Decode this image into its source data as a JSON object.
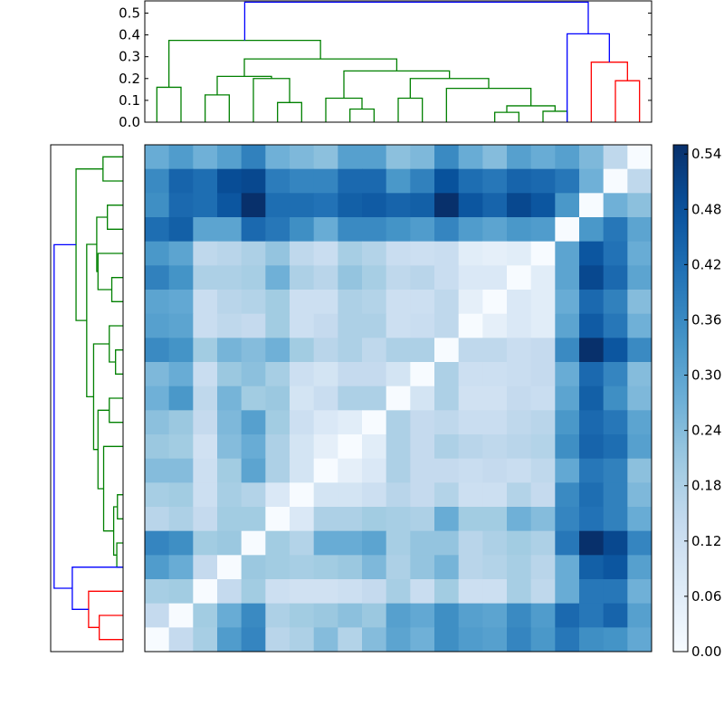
{
  "chart_data": {
    "type": "heatmap",
    "title": "",
    "description": "Clustered distance matrix heatmap with top and left dendrograms",
    "n": 21,
    "colormap": "Blues",
    "vmin": 0.0,
    "vmax": 0.55,
    "colorbar": {
      "ticks": [
        "0.00",
        "0.06",
        "0.12",
        "0.18",
        "0.24",
        "0.30",
        "0.36",
        "0.42",
        "0.48",
        "0.54"
      ],
      "tick_values": [
        0.0,
        0.06,
        0.12,
        0.18,
        0.24,
        0.3,
        0.36,
        0.42,
        0.48,
        0.54
      ]
    },
    "top_dendrogram": {
      "ylim": [
        0.0,
        0.56
      ],
      "yticks": [
        "0.0",
        "0.1",
        "0.2",
        "0.3",
        "0.4",
        "0.5"
      ],
      "tick_values": [
        0.0,
        0.1,
        0.2,
        0.3,
        0.4,
        0.5
      ],
      "colors": {
        "cluster_a": "#008000",
        "cluster_b": "#ff0000",
        "root": "#0000ff"
      },
      "segments": [
        {
          "c": "g",
          "x": [
            0.5,
            1.5
          ],
          "h0": [
            0,
            0
          ],
          "h": 0.16
        },
        {
          "c": "g",
          "x": [
            2.5,
            3.5
          ],
          "h0": [
            0,
            0
          ],
          "h": 0.125
        },
        {
          "c": "g",
          "x": [
            5.5,
            6.5
          ],
          "h0": [
            0,
            0
          ],
          "h": 0.09
        },
        {
          "c": "g",
          "x": [
            4.5,
            6.0
          ],
          "h0": [
            0,
            0.09
          ],
          "h": 0.2
        },
        {
          "c": "g",
          "x": [
            3.0,
            5.25
          ],
          "h0": [
            0.125,
            0.2
          ],
          "h": 0.21
        },
        {
          "c": "g",
          "x": [
            8.5,
            9.5
          ],
          "h0": [
            0,
            0
          ],
          "h": 0.06
        },
        {
          "c": "g",
          "x": [
            7.5,
            9.0
          ],
          "h0": [
            0,
            0.06
          ],
          "h": 0.11
        },
        {
          "c": "g",
          "x": [
            10.5,
            11.5
          ],
          "h0": [
            0,
            0
          ],
          "h": 0.11
        },
        {
          "c": "g",
          "x": [
            14.5,
            15.5
          ],
          "h0": [
            0,
            0
          ],
          "h": 0.045
        },
        {
          "c": "g",
          "x": [
            16.5,
            17.5
          ],
          "h0": [
            0,
            0
          ],
          "h": 0.05
        },
        {
          "c": "g",
          "x": [
            15.0,
            17.0
          ],
          "h0": [
            0.045,
            0.05
          ],
          "h": 0.075
        },
        {
          "c": "g",
          "x": [
            12.5,
            16.0
          ],
          "h0": [
            0,
            0.075
          ],
          "h": 0.155
        },
        {
          "c": "g",
          "x": [
            11.0,
            14.25
          ],
          "h0": [
            0.11,
            0.155
          ],
          "h": 0.2
        },
        {
          "c": "g",
          "x": [
            8.25,
            12.625
          ],
          "h0": [
            0.11,
            0.2
          ],
          "h": 0.235
        },
        {
          "c": "g",
          "x": [
            4.125,
            10.44
          ],
          "h0": [
            0.21,
            0.235
          ],
          "h": 0.29
        },
        {
          "c": "g",
          "x": [
            1.0,
            7.28
          ],
          "h0": [
            0.16,
            0.29
          ],
          "h": 0.375
        },
        {
          "c": "r",
          "x": [
            19.5,
            20.5
          ],
          "h0": [
            0,
            0
          ],
          "h": 0.19
        },
        {
          "c": "r",
          "x": [
            18.5,
            20.0
          ],
          "h0": [
            0,
            0.19
          ],
          "h": 0.275
        },
        {
          "c": "b",
          "x": [
            17.5,
            19.25
          ],
          "h0": [
            0,
            0.275
          ],
          "h": 0.405
        },
        {
          "c": "b",
          "x": [
            4.14,
            18.375
          ],
          "h0": [
            0.375,
            0.405
          ],
          "h": 0.55
        }
      ]
    },
    "matrix": [
      [
        0.28,
        0.32,
        0.27,
        0.31,
        0.38,
        0.27,
        0.25,
        0.23,
        0.31,
        0.31,
        0.23,
        0.25,
        0.36,
        0.28,
        0.24,
        0.31,
        0.28,
        0.31,
        0.25,
        0.15,
        0.0
      ],
      [
        0.36,
        0.44,
        0.42,
        0.49,
        0.5,
        0.39,
        0.37,
        0.37,
        0.43,
        0.43,
        0.33,
        0.38,
        0.48,
        0.42,
        0.4,
        0.44,
        0.43,
        0.4,
        0.27,
        0.0,
        0.15
      ],
      [
        0.35,
        0.43,
        0.42,
        0.47,
        0.55,
        0.42,
        0.42,
        0.41,
        0.45,
        0.46,
        0.44,
        0.45,
        0.55,
        0.47,
        0.44,
        0.5,
        0.47,
        0.33,
        0.0,
        0.27,
        0.23
      ],
      [
        0.42,
        0.45,
        0.3,
        0.3,
        0.43,
        0.4,
        0.35,
        0.28,
        0.36,
        0.36,
        0.34,
        0.32,
        0.37,
        0.32,
        0.3,
        0.33,
        0.32,
        0.0,
        0.33,
        0.4,
        0.3
      ],
      [
        0.33,
        0.3,
        0.15,
        0.16,
        0.18,
        0.22,
        0.15,
        0.13,
        0.19,
        0.17,
        0.13,
        0.12,
        0.13,
        0.06,
        0.05,
        0.06,
        0.0,
        0.3,
        0.47,
        0.41,
        0.28
      ],
      [
        0.38,
        0.34,
        0.18,
        0.18,
        0.19,
        0.27,
        0.18,
        0.16,
        0.22,
        0.19,
        0.15,
        0.16,
        0.13,
        0.08,
        0.08,
        0.0,
        0.06,
        0.3,
        0.5,
        0.43,
        0.3
      ],
      [
        0.3,
        0.29,
        0.13,
        0.16,
        0.17,
        0.2,
        0.12,
        0.12,
        0.18,
        0.17,
        0.12,
        0.12,
        0.15,
        0.05,
        0.0,
        0.08,
        0.06,
        0.28,
        0.43,
        0.38,
        0.24
      ],
      [
        0.31,
        0.3,
        0.13,
        0.15,
        0.14,
        0.2,
        0.12,
        0.14,
        0.18,
        0.18,
        0.12,
        0.13,
        0.15,
        0.0,
        0.05,
        0.08,
        0.06,
        0.3,
        0.46,
        0.4,
        0.27
      ],
      [
        0.36,
        0.34,
        0.2,
        0.26,
        0.24,
        0.27,
        0.2,
        0.16,
        0.18,
        0.15,
        0.18,
        0.18,
        0.0,
        0.15,
        0.15,
        0.13,
        0.14,
        0.36,
        0.55,
        0.47,
        0.36
      ],
      [
        0.25,
        0.28,
        0.13,
        0.21,
        0.23,
        0.19,
        0.12,
        0.1,
        0.14,
        0.14,
        0.1,
        0.0,
        0.18,
        0.12,
        0.12,
        0.13,
        0.14,
        0.28,
        0.43,
        0.37,
        0.24
      ],
      [
        0.27,
        0.33,
        0.15,
        0.26,
        0.2,
        0.21,
        0.1,
        0.13,
        0.18,
        0.18,
        0.0,
        0.1,
        0.18,
        0.11,
        0.11,
        0.14,
        0.13,
        0.3,
        0.45,
        0.35,
        0.25
      ],
      [
        0.23,
        0.21,
        0.14,
        0.25,
        0.31,
        0.2,
        0.12,
        0.08,
        0.06,
        0.0,
        0.18,
        0.14,
        0.15,
        0.13,
        0.13,
        0.15,
        0.16,
        0.33,
        0.43,
        0.4,
        0.3
      ],
      [
        0.21,
        0.2,
        0.11,
        0.24,
        0.28,
        0.18,
        0.1,
        0.05,
        0.0,
        0.06,
        0.18,
        0.14,
        0.18,
        0.16,
        0.15,
        0.16,
        0.17,
        0.35,
        0.44,
        0.42,
        0.31
      ],
      [
        0.24,
        0.24,
        0.12,
        0.2,
        0.3,
        0.18,
        0.1,
        0.0,
        0.05,
        0.08,
        0.18,
        0.14,
        0.14,
        0.13,
        0.14,
        0.13,
        0.15,
        0.29,
        0.4,
        0.38,
        0.23
      ],
      [
        0.19,
        0.2,
        0.12,
        0.19,
        0.17,
        0.08,
        0.0,
        0.1,
        0.1,
        0.12,
        0.16,
        0.14,
        0.17,
        0.12,
        0.12,
        0.17,
        0.14,
        0.36,
        0.42,
        0.38,
        0.25
      ],
      [
        0.16,
        0.18,
        0.14,
        0.2,
        0.2,
        0.0,
        0.08,
        0.18,
        0.18,
        0.2,
        0.19,
        0.18,
        0.28,
        0.2,
        0.2,
        0.27,
        0.24,
        0.37,
        0.41,
        0.38,
        0.28
      ],
      [
        0.37,
        0.35,
        0.2,
        0.21,
        0.0,
        0.2,
        0.17,
        0.28,
        0.28,
        0.3,
        0.19,
        0.22,
        0.22,
        0.16,
        0.18,
        0.2,
        0.18,
        0.4,
        0.55,
        0.5,
        0.37
      ],
      [
        0.32,
        0.28,
        0.14,
        0.0,
        0.21,
        0.2,
        0.19,
        0.2,
        0.21,
        0.25,
        0.18,
        0.22,
        0.26,
        0.16,
        0.17,
        0.19,
        0.16,
        0.28,
        0.45,
        0.47,
        0.31
      ],
      [
        0.19,
        0.2,
        0.0,
        0.14,
        0.2,
        0.12,
        0.11,
        0.11,
        0.12,
        0.14,
        0.19,
        0.13,
        0.2,
        0.12,
        0.12,
        0.19,
        0.15,
        0.28,
        0.4,
        0.4,
        0.27
      ],
      [
        0.14,
        0.0,
        0.2,
        0.28,
        0.36,
        0.18,
        0.2,
        0.21,
        0.23,
        0.21,
        0.31,
        0.29,
        0.35,
        0.31,
        0.3,
        0.36,
        0.32,
        0.43,
        0.4,
        0.44,
        0.31
      ],
      [
        0.0,
        0.14,
        0.19,
        0.32,
        0.37,
        0.16,
        0.18,
        0.24,
        0.17,
        0.24,
        0.3,
        0.27,
        0.35,
        0.32,
        0.31,
        0.37,
        0.33,
        0.4,
        0.35,
        0.34,
        0.29
      ]
    ]
  }
}
